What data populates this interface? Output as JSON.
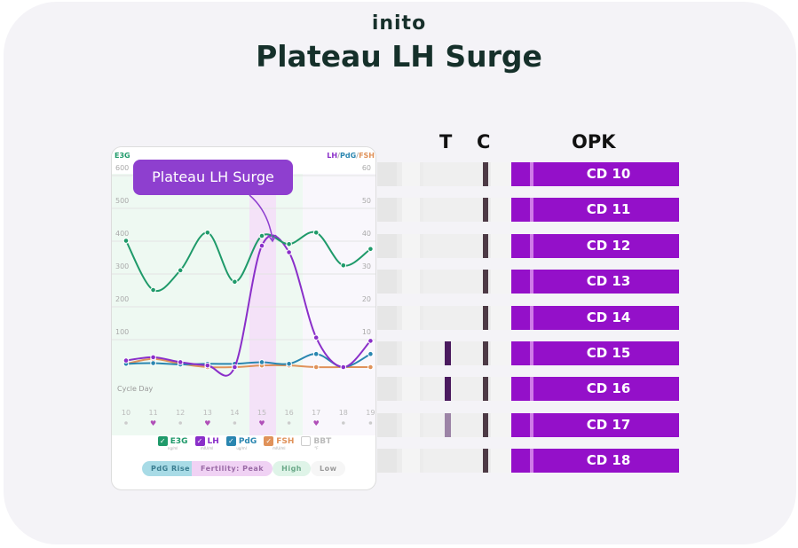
{
  "logo": "inito",
  "title": "Plateau LH Surge",
  "columns": {
    "t": "T",
    "c": "C",
    "opk": "OPK"
  },
  "strips": [
    {
      "label": "CD 10",
      "t_intensity": 0
    },
    {
      "label": "CD 11",
      "t_intensity": 0
    },
    {
      "label": "CD 12",
      "t_intensity": 0
    },
    {
      "label": "CD 13",
      "t_intensity": 0
    },
    {
      "label": "CD 14",
      "t_intensity": 0
    },
    {
      "label": "CD 15",
      "t_intensity": 1
    },
    {
      "label": "CD 16",
      "t_intensity": 1
    },
    {
      "label": "CD 17",
      "t_intensity": 0.5
    },
    {
      "label": "CD 18",
      "t_intensity": 0
    }
  ],
  "colors": {
    "e3g": "#1f9a6a",
    "lh": "#8a2fc9",
    "pdg": "#2a86b0",
    "fsh": "#e0925a",
    "opk": "#9410c9"
  },
  "chart_data": {
    "type": "line",
    "left_axis_label": "E3G",
    "right_axis_label_parts": [
      "LH",
      "/",
      "PdG",
      "/",
      "FSH"
    ],
    "left_ylim": [
      0,
      600
    ],
    "right_ylim": [
      0,
      60
    ],
    "left_ticks": [
      "600",
      "500",
      "400",
      "300",
      "200",
      "100"
    ],
    "right_ticks": [
      "60",
      "50",
      "40",
      "30",
      "20",
      "10"
    ],
    "xlabel": "Cycle Day",
    "x": [
      10,
      11,
      12,
      13,
      14,
      15,
      16,
      17,
      18,
      19
    ],
    "x_ticks": [
      "10",
      "11",
      "12",
      "13",
      "14",
      "15",
      "16",
      "17",
      "18",
      "19"
    ],
    "day_markers": [
      "dot",
      "heart",
      "dot",
      "heart",
      "dot",
      "heart",
      "dot",
      "heart",
      "dot",
      "dot"
    ],
    "annotation": "Plateau LH Surge",
    "series": [
      {
        "name": "E3G",
        "unit": "ng/ml",
        "axis": "left",
        "values": [
          385,
          235,
          295,
          410,
          260,
          400,
          375,
          410,
          310,
          360
        ]
      },
      {
        "name": "LH",
        "unit": "mIU/ml",
        "axis": "right",
        "values": [
          2,
          3,
          1.5,
          0.5,
          0,
          37,
          35,
          9,
          0,
          8
        ]
      },
      {
        "name": "PdG",
        "unit": "ug/ml",
        "axis": "right",
        "values": [
          1,
          1.2,
          0.8,
          1,
          1,
          1.5,
          1,
          4,
          0,
          4
        ]
      },
      {
        "name": "FSH",
        "unit": "mIU/ml",
        "axis": "right",
        "values": [
          1,
          2.5,
          1,
          0,
          0,
          0.5,
          0.5,
          0,
          0,
          0
        ]
      }
    ],
    "legend": [
      {
        "name": "E3G",
        "unit": "ng/ml",
        "checked": true
      },
      {
        "name": "LH",
        "unit": "mIU/ml",
        "checked": true
      },
      {
        "name": "PdG",
        "unit": "ug/ml",
        "checked": true
      },
      {
        "name": "FSH",
        "unit": "mIU/ml",
        "checked": true
      },
      {
        "name": "BBT",
        "unit": "°F",
        "checked": false
      }
    ],
    "phases": [
      "PdG Rise",
      "Fertility: Peak",
      "High",
      "Low"
    ]
  }
}
